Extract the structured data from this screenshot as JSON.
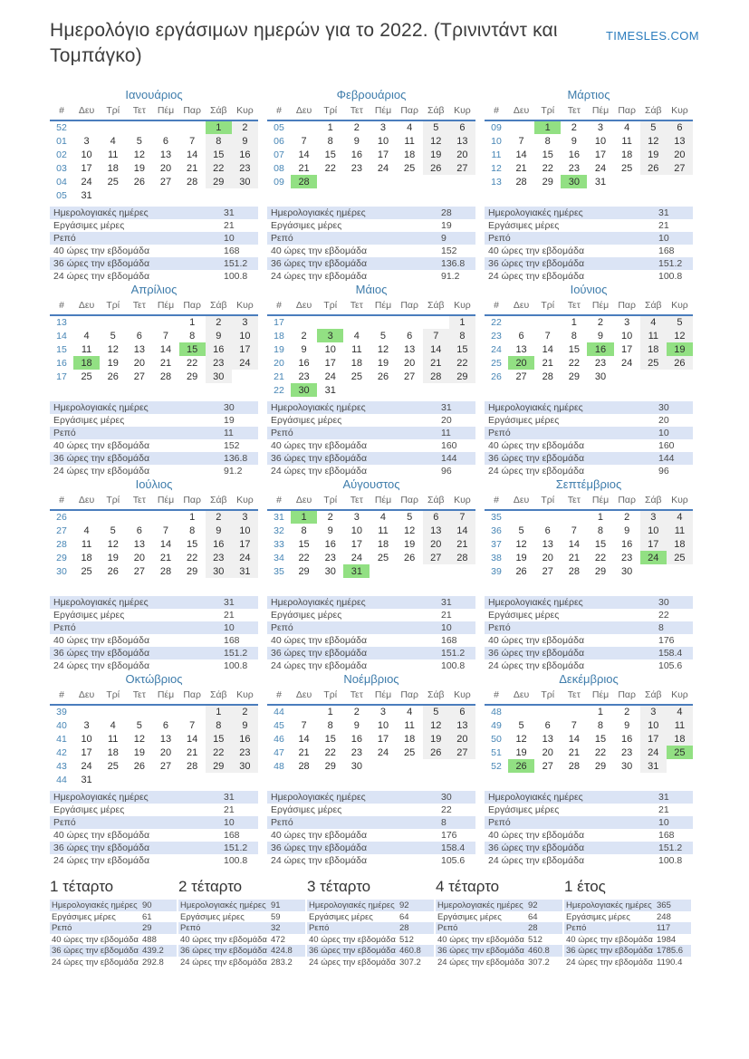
{
  "page": {
    "title": "Ημερολόγιο εργάσιμων ημερών για το 2022. (Τρινιντάντ και Τομπάγκο)",
    "brand": "TIMESLES.COM"
  },
  "colors": {
    "accent_blue": "#3e7cab",
    "week_number_blue": "#4685b5",
    "header_line_blue": "#4a7dbd",
    "holiday_green": "#92e083",
    "weekend_gray": "#f0f0f0",
    "stats_row_blue": "#dbe4f5",
    "brand_blue": "#2b7cbd"
  },
  "weekday_headers": [
    "#",
    "Δευ",
    "Τρί",
    "Τετ",
    "Πέμ",
    "Παρ",
    "Σάβ",
    "Κυρ"
  ],
  "stats_labels": [
    "Ημερολογιακές ημέρες",
    "Εργάσιμες μέρες",
    "Ρεπό",
    "40 ώρες την εβδομάδα",
    "36 ώρες την εβδομάδα",
    "24 ώρες την εβδομάδα"
  ],
  "months": [
    {
      "name": "Ιανουάριος",
      "weeks": [
        {
          "wk": "52",
          "days": [
            "",
            "",
            "",
            "",
            "",
            "1",
            "2"
          ]
        },
        {
          "wk": "01",
          "days": [
            "3",
            "4",
            "5",
            "6",
            "7",
            "8",
            "9"
          ]
        },
        {
          "wk": "02",
          "days": [
            "10",
            "11",
            "12",
            "13",
            "14",
            "15",
            "16"
          ]
        },
        {
          "wk": "03",
          "days": [
            "17",
            "18",
            "19",
            "20",
            "21",
            "22",
            "23"
          ]
        },
        {
          "wk": "04",
          "days": [
            "24",
            "25",
            "26",
            "27",
            "28",
            "29",
            "30"
          ]
        },
        {
          "wk": "05",
          "days": [
            "31",
            "",
            "",
            "",
            "",
            "",
            ""
          ]
        }
      ],
      "holidays": [
        "1"
      ],
      "stats": [
        "31",
        "21",
        "10",
        "168",
        "151.2",
        "100.8"
      ]
    },
    {
      "name": "Φεβρουάριος",
      "weeks": [
        {
          "wk": "05",
          "days": [
            "",
            "1",
            "2",
            "3",
            "4",
            "5",
            "6"
          ]
        },
        {
          "wk": "06",
          "days": [
            "7",
            "8",
            "9",
            "10",
            "11",
            "12",
            "13"
          ]
        },
        {
          "wk": "07",
          "days": [
            "14",
            "15",
            "16",
            "17",
            "18",
            "19",
            "20"
          ]
        },
        {
          "wk": "08",
          "days": [
            "21",
            "22",
            "23",
            "24",
            "25",
            "26",
            "27"
          ]
        },
        {
          "wk": "09",
          "days": [
            "28",
            "",
            "",
            "",
            "",
            "",
            ""
          ]
        }
      ],
      "holidays": [
        "28"
      ],
      "stats": [
        "28",
        "19",
        "9",
        "152",
        "136.8",
        "91.2"
      ]
    },
    {
      "name": "Μάρτιος",
      "weeks": [
        {
          "wk": "09",
          "days": [
            "",
            "1",
            "2",
            "3",
            "4",
            "5",
            "6"
          ]
        },
        {
          "wk": "10",
          "days": [
            "7",
            "8",
            "9",
            "10",
            "11",
            "12",
            "13"
          ]
        },
        {
          "wk": "11",
          "days": [
            "14",
            "15",
            "16",
            "17",
            "18",
            "19",
            "20"
          ]
        },
        {
          "wk": "12",
          "days": [
            "21",
            "22",
            "23",
            "24",
            "25",
            "26",
            "27"
          ]
        },
        {
          "wk": "13",
          "days": [
            "28",
            "29",
            "30",
            "31",
            "",
            "",
            ""
          ]
        }
      ],
      "holidays": [
        "1",
        "30"
      ],
      "stats": [
        "31",
        "21",
        "10",
        "168",
        "151.2",
        "100.8"
      ]
    },
    {
      "name": "Απρίλιος",
      "weeks": [
        {
          "wk": "13",
          "days": [
            "",
            "",
            "",
            "",
            "1",
            "2",
            "3"
          ]
        },
        {
          "wk": "14",
          "days": [
            "4",
            "5",
            "6",
            "7",
            "8",
            "9",
            "10"
          ]
        },
        {
          "wk": "15",
          "days": [
            "11",
            "12",
            "13",
            "14",
            "15",
            "16",
            "17"
          ]
        },
        {
          "wk": "16",
          "days": [
            "18",
            "19",
            "20",
            "21",
            "22",
            "23",
            "24"
          ]
        },
        {
          "wk": "17",
          "days": [
            "25",
            "26",
            "27",
            "28",
            "29",
            "30",
            ""
          ]
        }
      ],
      "holidays": [
        "15",
        "18"
      ],
      "stats": [
        "30",
        "19",
        "11",
        "152",
        "136.8",
        "91.2"
      ]
    },
    {
      "name": "Μάιος",
      "weeks": [
        {
          "wk": "17",
          "days": [
            "",
            "",
            "",
            "",
            "",
            "",
            "1"
          ]
        },
        {
          "wk": "18",
          "days": [
            "2",
            "3",
            "4",
            "5",
            "6",
            "7",
            "8"
          ]
        },
        {
          "wk": "19",
          "days": [
            "9",
            "10",
            "11",
            "12",
            "13",
            "14",
            "15"
          ]
        },
        {
          "wk": "20",
          "days": [
            "16",
            "17",
            "18",
            "19",
            "20",
            "21",
            "22"
          ]
        },
        {
          "wk": "21",
          "days": [
            "23",
            "24",
            "25",
            "26",
            "27",
            "28",
            "29"
          ]
        },
        {
          "wk": "22",
          "days": [
            "30",
            "31",
            "",
            "",
            "",
            "",
            ""
          ]
        }
      ],
      "holidays": [
        "3",
        "30"
      ],
      "stats": [
        "31",
        "20",
        "11",
        "160",
        "144",
        "96"
      ]
    },
    {
      "name": "Ιούνιος",
      "weeks": [
        {
          "wk": "22",
          "days": [
            "",
            "",
            "1",
            "2",
            "3",
            "4",
            "5"
          ]
        },
        {
          "wk": "23",
          "days": [
            "6",
            "7",
            "8",
            "9",
            "10",
            "11",
            "12"
          ]
        },
        {
          "wk": "24",
          "days": [
            "13",
            "14",
            "15",
            "16",
            "17",
            "18",
            "19"
          ]
        },
        {
          "wk": "25",
          "days": [
            "20",
            "21",
            "22",
            "23",
            "24",
            "25",
            "26"
          ]
        },
        {
          "wk": "26",
          "days": [
            "27",
            "28",
            "29",
            "30",
            "",
            "",
            ""
          ]
        }
      ],
      "holidays": [
        "16",
        "19",
        "20"
      ],
      "stats": [
        "30",
        "20",
        "10",
        "160",
        "144",
        "96"
      ]
    },
    {
      "name": "Ιούλιος",
      "weeks": [
        {
          "wk": "26",
          "days": [
            "",
            "",
            "",
            "",
            "1",
            "2",
            "3"
          ]
        },
        {
          "wk": "27",
          "days": [
            "4",
            "5",
            "6",
            "7",
            "8",
            "9",
            "10"
          ]
        },
        {
          "wk": "28",
          "days": [
            "11",
            "12",
            "13",
            "14",
            "15",
            "16",
            "17"
          ]
        },
        {
          "wk": "29",
          "days": [
            "18",
            "19",
            "20",
            "21",
            "22",
            "23",
            "24"
          ]
        },
        {
          "wk": "30",
          "days": [
            "25",
            "26",
            "27",
            "28",
            "29",
            "30",
            "31"
          ]
        }
      ],
      "holidays": [],
      "stats": [
        "31",
        "21",
        "10",
        "168",
        "151.2",
        "100.8"
      ]
    },
    {
      "name": "Αύγουστος",
      "weeks": [
        {
          "wk": "31",
          "days": [
            "1",
            "2",
            "3",
            "4",
            "5",
            "6",
            "7"
          ]
        },
        {
          "wk": "32",
          "days": [
            "8",
            "9",
            "10",
            "11",
            "12",
            "13",
            "14"
          ]
        },
        {
          "wk": "33",
          "days": [
            "15",
            "16",
            "17",
            "18",
            "19",
            "20",
            "21"
          ]
        },
        {
          "wk": "34",
          "days": [
            "22",
            "23",
            "24",
            "25",
            "26",
            "27",
            "28"
          ]
        },
        {
          "wk": "35",
          "days": [
            "29",
            "30",
            "31",
            "",
            "",
            "",
            ""
          ]
        }
      ],
      "holidays": [
        "1",
        "31"
      ],
      "stats": [
        "31",
        "21",
        "10",
        "168",
        "151.2",
        "100.8"
      ]
    },
    {
      "name": "Σεπτέμβριος",
      "weeks": [
        {
          "wk": "35",
          "days": [
            "",
            "",
            "",
            "1",
            "2",
            "3",
            "4"
          ]
        },
        {
          "wk": "36",
          "days": [
            "5",
            "6",
            "7",
            "8",
            "9",
            "10",
            "11"
          ]
        },
        {
          "wk": "37",
          "days": [
            "12",
            "13",
            "14",
            "15",
            "16",
            "17",
            "18"
          ]
        },
        {
          "wk": "38",
          "days": [
            "19",
            "20",
            "21",
            "22",
            "23",
            "24",
            "25"
          ]
        },
        {
          "wk": "39",
          "days": [
            "26",
            "27",
            "28",
            "29",
            "30",
            "",
            ""
          ]
        }
      ],
      "holidays": [
        "24"
      ],
      "stats": [
        "30",
        "22",
        "8",
        "176",
        "158.4",
        "105.6"
      ]
    },
    {
      "name": "Οκτώβριος",
      "weeks": [
        {
          "wk": "39",
          "days": [
            "",
            "",
            "",
            "",
            "",
            "1",
            "2"
          ]
        },
        {
          "wk": "40",
          "days": [
            "3",
            "4",
            "5",
            "6",
            "7",
            "8",
            "9"
          ]
        },
        {
          "wk": "41",
          "days": [
            "10",
            "11",
            "12",
            "13",
            "14",
            "15",
            "16"
          ]
        },
        {
          "wk": "42",
          "days": [
            "17",
            "18",
            "19",
            "20",
            "21",
            "22",
            "23"
          ]
        },
        {
          "wk": "43",
          "days": [
            "24",
            "25",
            "26",
            "27",
            "28",
            "29",
            "30"
          ]
        },
        {
          "wk": "44",
          "days": [
            "31",
            "",
            "",
            "",
            "",
            "",
            ""
          ]
        }
      ],
      "holidays": [],
      "stats": [
        "31",
        "21",
        "10",
        "168",
        "151.2",
        "100.8"
      ]
    },
    {
      "name": "Νοέμβριος",
      "weeks": [
        {
          "wk": "44",
          "days": [
            "",
            "1",
            "2",
            "3",
            "4",
            "5",
            "6"
          ]
        },
        {
          "wk": "45",
          "days": [
            "7",
            "8",
            "9",
            "10",
            "11",
            "12",
            "13"
          ]
        },
        {
          "wk": "46",
          "days": [
            "14",
            "15",
            "16",
            "17",
            "18",
            "19",
            "20"
          ]
        },
        {
          "wk": "47",
          "days": [
            "21",
            "22",
            "23",
            "24",
            "25",
            "26",
            "27"
          ]
        },
        {
          "wk": "48",
          "days": [
            "28",
            "29",
            "30",
            "",
            "",
            "",
            ""
          ]
        }
      ],
      "holidays": [],
      "stats": [
        "30",
        "22",
        "8",
        "176",
        "158.4",
        "105.6"
      ]
    },
    {
      "name": "Δεκέμβριος",
      "weeks": [
        {
          "wk": "48",
          "days": [
            "",
            "",
            "",
            "1",
            "2",
            "3",
            "4"
          ]
        },
        {
          "wk": "49",
          "days": [
            "5",
            "6",
            "7",
            "8",
            "9",
            "10",
            "11"
          ]
        },
        {
          "wk": "50",
          "days": [
            "12",
            "13",
            "14",
            "15",
            "16",
            "17",
            "18"
          ]
        },
        {
          "wk": "51",
          "days": [
            "19",
            "20",
            "21",
            "22",
            "23",
            "24",
            "25"
          ]
        },
        {
          "wk": "52",
          "days": [
            "26",
            "27",
            "28",
            "29",
            "30",
            "31",
            ""
          ]
        }
      ],
      "holidays": [
        "25",
        "26"
      ],
      "stats": [
        "31",
        "21",
        "10",
        "168",
        "151.2",
        "100.8"
      ]
    }
  ],
  "summaries": [
    {
      "title": "1 τέταρτο",
      "stats": [
        "90",
        "61",
        "29",
        "488",
        "439.2",
        "292.8"
      ]
    },
    {
      "title": "2 τέταρτο",
      "stats": [
        "91",
        "59",
        "32",
        "472",
        "424.8",
        "283.2"
      ]
    },
    {
      "title": "3 τέταρτο",
      "stats": [
        "92",
        "64",
        "28",
        "512",
        "460.8",
        "307.2"
      ]
    },
    {
      "title": "4 τέταρτο",
      "stats": [
        "92",
        "64",
        "28",
        "512",
        "460.8",
        "307.2"
      ]
    },
    {
      "title": "1 έτος",
      "stats": [
        "365",
        "248",
        "117",
        "1984",
        "1785.6",
        "1190.4"
      ]
    }
  ]
}
